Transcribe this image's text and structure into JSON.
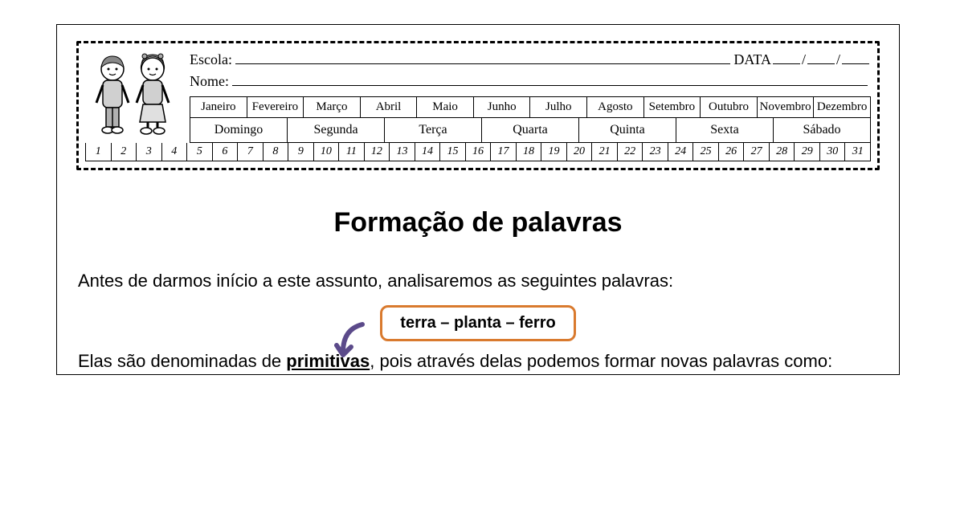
{
  "header": {
    "escola_label": "Escola:",
    "data_label": "DATA",
    "nome_label": "Nome:",
    "months": [
      "Janeiro",
      "Fevereiro",
      "Março",
      "Abril",
      "Maio",
      "Junho",
      "Julho",
      "Agosto",
      "Setembro",
      "Outubro",
      "Novembro",
      "Dezembro"
    ],
    "weekdays": [
      "Domingo",
      "Segunda",
      "Terça",
      "Quarta",
      "Quinta",
      "Sexta",
      "Sábado"
    ],
    "day_count": 31
  },
  "title": "Formação de palavras",
  "intro_text": "Antes de darmos início a este assunto, analisaremos as seguintes palavras:",
  "word_box": "terra – planta – ferro",
  "second_text_pre": "Elas são denominadas de ",
  "second_text_bold": "primitivas",
  "second_text_post": ", pois através delas podemos formar novas palavras como:",
  "colors": {
    "box_border": "#d97a2e",
    "arrow": "#5b4a8a",
    "text": "#000000",
    "background": "#ffffff"
  }
}
